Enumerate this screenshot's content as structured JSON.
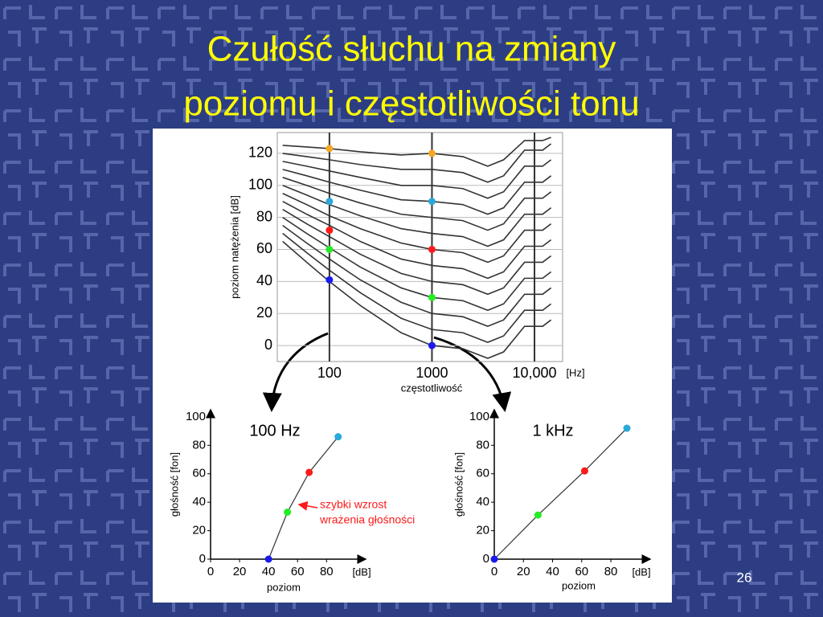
{
  "title_lines": [
    "Czułość słuchu na zmiany",
    "poziomu i częstotliwości tonu"
  ],
  "page_number": "26",
  "chart_data": [
    {
      "type": "line",
      "xscale": "log",
      "ylabel": "poziom natężenia [dB]",
      "xlabel": "częstotliwość",
      "xunit": "[Hz]",
      "xlim": [
        31,
        18800
      ],
      "xticks": [
        100,
        1000,
        {
          "value": 10000,
          "label": "10,000"
        }
      ],
      "ylim": [
        -10,
        133
      ],
      "yticks": [
        0,
        20,
        40,
        60,
        80,
        100,
        120
      ],
      "grid": true,
      "line_color": "#333333",
      "x": [
        35,
        60,
        100,
        200,
        500,
        1000,
        2000,
        3500,
        5000,
        8000,
        12000,
        14500
      ],
      "series": [
        {
          "values": [
            65,
            52,
            40,
            25,
            8,
            0,
            -2,
            -8,
            -4,
            12,
            12,
            16
          ]
        },
        {
          "values": [
            70,
            58,
            47,
            33,
            17,
            10,
            8,
            2,
            6,
            22,
            22,
            26
          ]
        },
        {
          "values": [
            75,
            64,
            54,
            41,
            27,
            20,
            18,
            12,
            16,
            32,
            32,
            36
          ]
        },
        {
          "values": [
            80,
            70,
            61,
            49,
            36,
            30,
            28,
            22,
            26,
            42,
            42,
            46
          ]
        },
        {
          "values": [
            85,
            76,
            68,
            57,
            45,
            40,
            38,
            32,
            36,
            52,
            52,
            56
          ]
        },
        {
          "values": [
            90,
            82,
            75,
            65,
            54,
            50,
            48,
            42,
            46,
            62,
            62,
            66
          ]
        },
        {
          "values": [
            95,
            88,
            81,
            73,
            64,
            60,
            58,
            52,
            56,
            72,
            72,
            76
          ]
        },
        {
          "values": [
            100,
            94,
            88,
            81,
            73,
            70,
            68,
            62,
            66,
            82,
            82,
            86
          ]
        },
        {
          "values": [
            105,
            100,
            95,
            89,
            82,
            80,
            78,
            72,
            76,
            92,
            92,
            96
          ]
        },
        {
          "values": [
            110,
            106,
            102,
            97,
            91,
            90,
            88,
            82,
            86,
            102,
            102,
            106
          ]
        },
        {
          "values": [
            115,
            112,
            109,
            105,
            100,
            100,
            98,
            92,
            96,
            112,
            112,
            116
          ]
        },
        {
          "values": [
            120,
            118,
            116,
            113,
            110,
            110,
            108,
            102,
            106,
            122,
            122,
            126
          ]
        },
        {
          "values": [
            125,
            124,
            123,
            121,
            119,
            120,
            118,
            112,
            116,
            128,
            128,
            130
          ]
        }
      ],
      "points_x": [
        100,
        1000
      ],
      "points": [
        {
          "color": "#f5a623",
          "values": [
            123,
            120
          ]
        },
        {
          "color": "#29a9d9",
          "values": [
            90,
            90
          ]
        },
        {
          "color": "#ff1a1a",
          "values": [
            72,
            60
          ]
        },
        {
          "color": "#22ee22",
          "values": [
            60,
            30
          ]
        },
        {
          "color": "#1a1aee",
          "values": [
            41,
            0
          ]
        }
      ]
    },
    {
      "type": "line",
      "title": "100 Hz",
      "ylabel": "głośność [fon]",
      "xlabel": "poziom",
      "xunit": "[dB]",
      "xlim": [
        0,
        107
      ],
      "xticks": [
        0,
        20,
        40,
        60,
        80
      ],
      "ylim": [
        0,
        105
      ],
      "yticks": [
        0,
        20,
        40,
        60,
        80,
        100
      ],
      "x": [
        40,
        53,
        68,
        88
      ],
      "values": [
        0,
        33,
        61,
        86
      ],
      "line_color": "#333333",
      "colors": [
        "#1a1aee",
        "#22ee22",
        "#ff1a1a",
        "#29a9d9"
      ],
      "annotation": [
        "szybki wzrost",
        "wrażenia głośności"
      ],
      "annotation_color": "#ff1a1a"
    },
    {
      "type": "line",
      "title": "1 kHz",
      "ylabel": "głośność [fon]",
      "xlabel": "poziom",
      "xunit": "[dB]",
      "xlim": [
        0,
        107
      ],
      "xticks": [
        0,
        20,
        40,
        60,
        80
      ],
      "ylim": [
        0,
        105
      ],
      "yticks": [
        0,
        20,
        40,
        60,
        80,
        100
      ],
      "x": [
        0,
        30,
        62,
        91
      ],
      "values": [
        0,
        31,
        62,
        92
      ],
      "line_color": "#333333",
      "colors": [
        "#1a1aee",
        "#22ee22",
        "#ff1a1a",
        "#29a9d9"
      ]
    }
  ]
}
